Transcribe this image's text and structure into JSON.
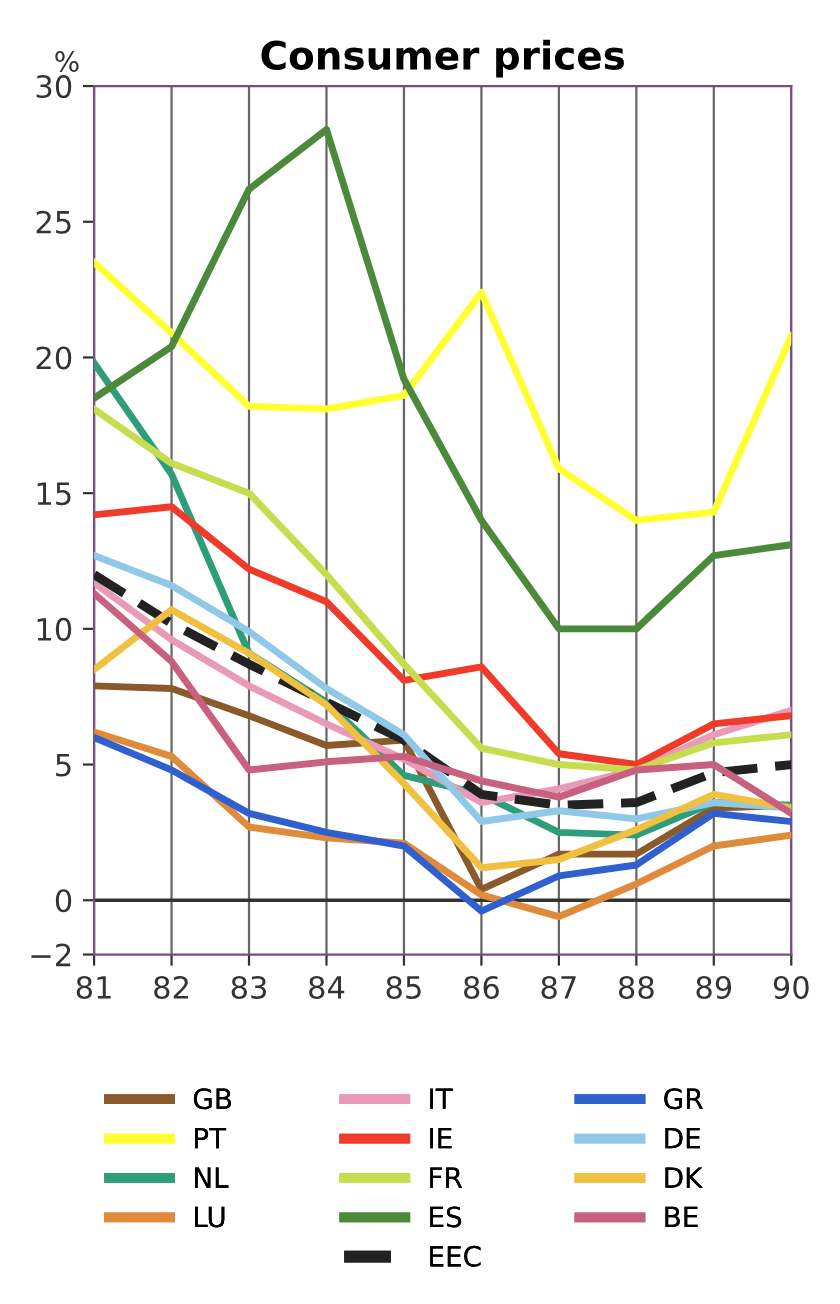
{
  "chart_data": {
    "type": "line",
    "title": "Consumer prices",
    "ylabel": "%",
    "x": [
      81,
      82,
      83,
      84,
      85,
      86,
      87,
      88,
      89,
      90
    ],
    "xlim": [
      81,
      90
    ],
    "xticks": [
      81,
      82,
      83,
      84,
      85,
      86,
      87,
      88,
      89,
      90
    ],
    "ylim": [
      -2,
      30
    ],
    "yticks": [
      -2,
      0,
      5,
      10,
      15,
      20,
      25,
      30
    ],
    "grid": "x",
    "legend": "bottom",
    "marker": "none",
    "line_style": "solid",
    "ref_lines": [
      {
        "axis": "y",
        "value": 0,
        "color": "#333333"
      }
    ],
    "series": [
      {
        "name": "GB",
        "color": "#8b5a2b",
        "values": [
          7.9,
          7.8,
          6.8,
          5.7,
          5.9,
          0.4,
          1.7,
          1.7,
          3.4,
          3.5
        ]
      },
      {
        "name": "PT",
        "color": "#ffff33",
        "values": [
          23.5,
          20.9,
          18.2,
          18.1,
          18.6,
          22.4,
          15.9,
          14.0,
          14.3,
          20.8
        ]
      },
      {
        "name": "NL",
        "color": "#2e9e7a",
        "values": [
          19.8,
          15.7,
          9.1,
          7.3,
          4.6,
          3.9,
          2.5,
          2.4,
          3.6,
          3.5
        ]
      },
      {
        "name": "LU",
        "color": "#e08a3c",
        "values": [
          6.2,
          5.3,
          2.7,
          2.3,
          2.1,
          0.2,
          -0.6,
          0.6,
          2.0,
          2.4
        ]
      },
      {
        "name": "IT",
        "color": "#e89ab8",
        "values": [
          11.7,
          9.6,
          7.9,
          6.5,
          5.2,
          3.6,
          4.1,
          4.8,
          6.1,
          7.0
        ]
      },
      {
        "name": "IE",
        "color": "#f03a2a",
        "values": [
          14.2,
          14.5,
          12.2,
          11.0,
          8.1,
          8.6,
          5.4,
          5.0,
          6.5,
          6.8
        ]
      },
      {
        "name": "FR",
        "color": "#c8dc50",
        "values": [
          18.1,
          16.1,
          15.0,
          12.0,
          8.7,
          5.6,
          5.0,
          4.8,
          5.8,
          6.1
        ]
      },
      {
        "name": "ES",
        "color": "#4a8a3a",
        "values": [
          18.5,
          20.4,
          26.2,
          28.4,
          19.2,
          14.0,
          10.0,
          10.0,
          12.7,
          13.1
        ]
      },
      {
        "name": "EEC",
        "color": "#222222",
        "line_style": "dashed",
        "values": [
          12.0,
          10.2,
          8.7,
          7.3,
          5.9,
          3.9,
          3.5,
          3.6,
          4.7,
          5.0
        ]
      },
      {
        "name": "GR",
        "color": "#3060d0",
        "values": [
          6.0,
          4.8,
          3.2,
          2.5,
          2.0,
          -0.4,
          0.9,
          1.3,
          3.2,
          2.9
        ]
      },
      {
        "name": "DE",
        "color": "#90c8e8",
        "values": [
          12.7,
          11.6,
          9.9,
          7.8,
          6.1,
          2.9,
          3.3,
          3.0,
          3.6,
          3.4
        ]
      },
      {
        "name": "DK",
        "color": "#f0c040",
        "values": [
          8.5,
          10.7,
          9.1,
          7.2,
          4.3,
          1.2,
          1.5,
          2.6,
          3.9,
          3.4
        ]
      },
      {
        "name": "BE",
        "color": "#c86080",
        "values": [
          11.3,
          8.8,
          4.8,
          5.1,
          5.3,
          4.4,
          3.8,
          4.8,
          5.0,
          3.2
        ]
      }
    ]
  }
}
